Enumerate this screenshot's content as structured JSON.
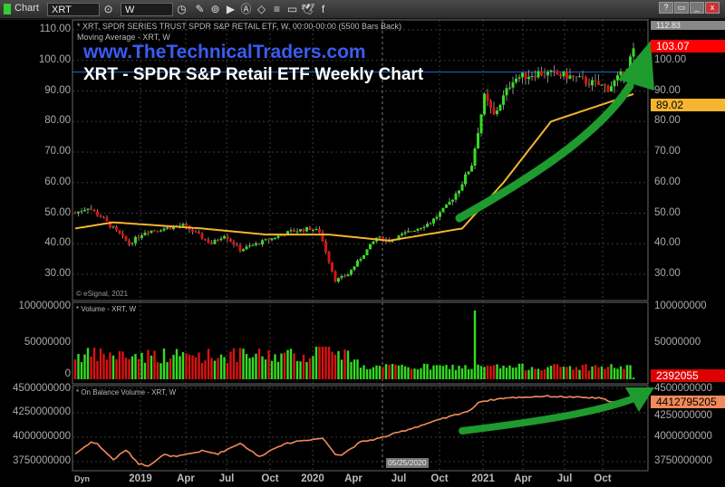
{
  "toolbar": {
    "app_label": "Chart",
    "symbol": "XRT",
    "interval": "W",
    "icons": [
      "link-icon",
      "clock-icon",
      "pencil-icon",
      "indicator-icon",
      "play-icon",
      "alert-icon",
      "eraser-icon",
      "list-icon",
      "comment-icon",
      "twitter-icon",
      "facebook-icon"
    ],
    "window_buttons": [
      "?",
      "▭",
      "_",
      "□",
      "x"
    ]
  },
  "price_pane": {
    "header": "* XRT, SPDR SERIES TRUST SPDR S&P RETAIL ETF, W, 00:00-00:00 (5500 Bars Back)",
    "ma_label": "Moving Average - XRT, W",
    "watermark": "www.TheTechnicalTraders.com",
    "title": "XRT - SPDR S&P Retail ETF Weekly Chart",
    "copyright": "© eSignal, 2021",
    "high_tag": "112.83",
    "last_price": "103.07",
    "ma_value": "89.02",
    "ticks": [
      "110.00",
      "100.00",
      "90.00",
      "80.00",
      "70.00",
      "60.00",
      "50.00",
      "40.00",
      "30.00"
    ]
  },
  "volume_pane": {
    "label": "* Volume - XRT, W",
    "ticks_left": [
      "100000000",
      "50000000",
      "0"
    ],
    "ticks_right": [
      "100000000",
      "50000000"
    ],
    "last_value": "2392055"
  },
  "obv_pane": {
    "label": "* On Balance Volume - XRT, W",
    "ticks_left": [
      "4500000000",
      "4250000000",
      "4000000000",
      "3750000000"
    ],
    "ticks_right": [
      "4500000000",
      "4250000000",
      "4000000000",
      "3750000000"
    ],
    "last_value": "4412795205"
  },
  "xaxis": {
    "dyn": "Dyn",
    "cursor_date": "05/25/2020",
    "ticks": [
      "2019",
      "Apr",
      "Jul",
      "Oct",
      "2020",
      "Apr",
      "Jul",
      "Oct",
      "2021",
      "Apr",
      "Jul",
      "Oct"
    ]
  },
  "colors": {
    "up": "#33dd22",
    "down": "#dd1111",
    "ma": "#f5b530",
    "obv": "#f08a5a",
    "arrow": "#1e9a2e",
    "hline": "#1a6fd6",
    "watermark": "#3b5cf0"
  },
  "chart_data": {
    "type": "candlestick",
    "x_unit": "week index (week 21 = Jan 2019)",
    "price_close_anchors": [
      [
        0,
        50
      ],
      [
        4,
        52
      ],
      [
        9,
        48
      ],
      [
        17,
        40
      ],
      [
        22,
        44
      ],
      [
        34,
        46
      ],
      [
        43,
        40
      ],
      [
        47,
        43
      ],
      [
        52,
        38
      ],
      [
        60,
        41
      ],
      [
        68,
        44
      ],
      [
        74,
        45
      ],
      [
        77,
        44
      ],
      [
        82,
        28
      ],
      [
        86,
        30
      ],
      [
        95,
        42
      ],
      [
        99,
        41
      ],
      [
        112,
        47
      ],
      [
        117,
        52
      ],
      [
        121,
        58
      ],
      [
        125,
        66
      ],
      [
        129,
        88
      ],
      [
        132,
        82
      ],
      [
        138,
        94
      ],
      [
        146,
        96
      ],
      [
        155,
        95
      ],
      [
        168,
        91
      ],
      [
        173,
        96
      ],
      [
        176,
        103
      ]
    ],
    "ma_anchors": [
      [
        0,
        45
      ],
      [
        12,
        47
      ],
      [
        40,
        45
      ],
      [
        60,
        43
      ],
      [
        80,
        43
      ],
      [
        99,
        41
      ],
      [
        122,
        45
      ],
      [
        135,
        60
      ],
      [
        150,
        80
      ],
      [
        176,
        89
      ]
    ],
    "obv_billions_anchors": [
      [
        0,
        3.83
      ],
      [
        5,
        3.95
      ],
      [
        7,
        3.93
      ],
      [
        12,
        3.77
      ],
      [
        16,
        3.87
      ],
      [
        20,
        3.73
      ],
      [
        23,
        3.71
      ],
      [
        28,
        3.82
      ],
      [
        32,
        3.8
      ],
      [
        40,
        3.86
      ],
      [
        45,
        3.83
      ],
      [
        52,
        3.94
      ],
      [
        58,
        3.8
      ],
      [
        64,
        3.91
      ],
      [
        70,
        3.96
      ],
      [
        78,
        3.99
      ],
      [
        82,
        3.83
      ],
      [
        84,
        3.82
      ],
      [
        90,
        3.95
      ],
      [
        96,
        3.99
      ],
      [
        112,
        4.15
      ],
      [
        117,
        4.2
      ],
      [
        121,
        4.24
      ],
      [
        125,
        4.28
      ],
      [
        127,
        4.36
      ],
      [
        135,
        4.4
      ],
      [
        148,
        4.42
      ],
      [
        165,
        4.4
      ],
      [
        170,
        4.36
      ],
      [
        176,
        4.41
      ]
    ],
    "volume_spike": {
      "week": 126,
      "value_millions": 95
    },
    "horizontal_line": 79,
    "price_range": [
      22,
      113
    ],
    "volume_range_millions": [
      0,
      100
    ],
    "obv_range_billions": [
      3.7,
      4.52
    ]
  }
}
